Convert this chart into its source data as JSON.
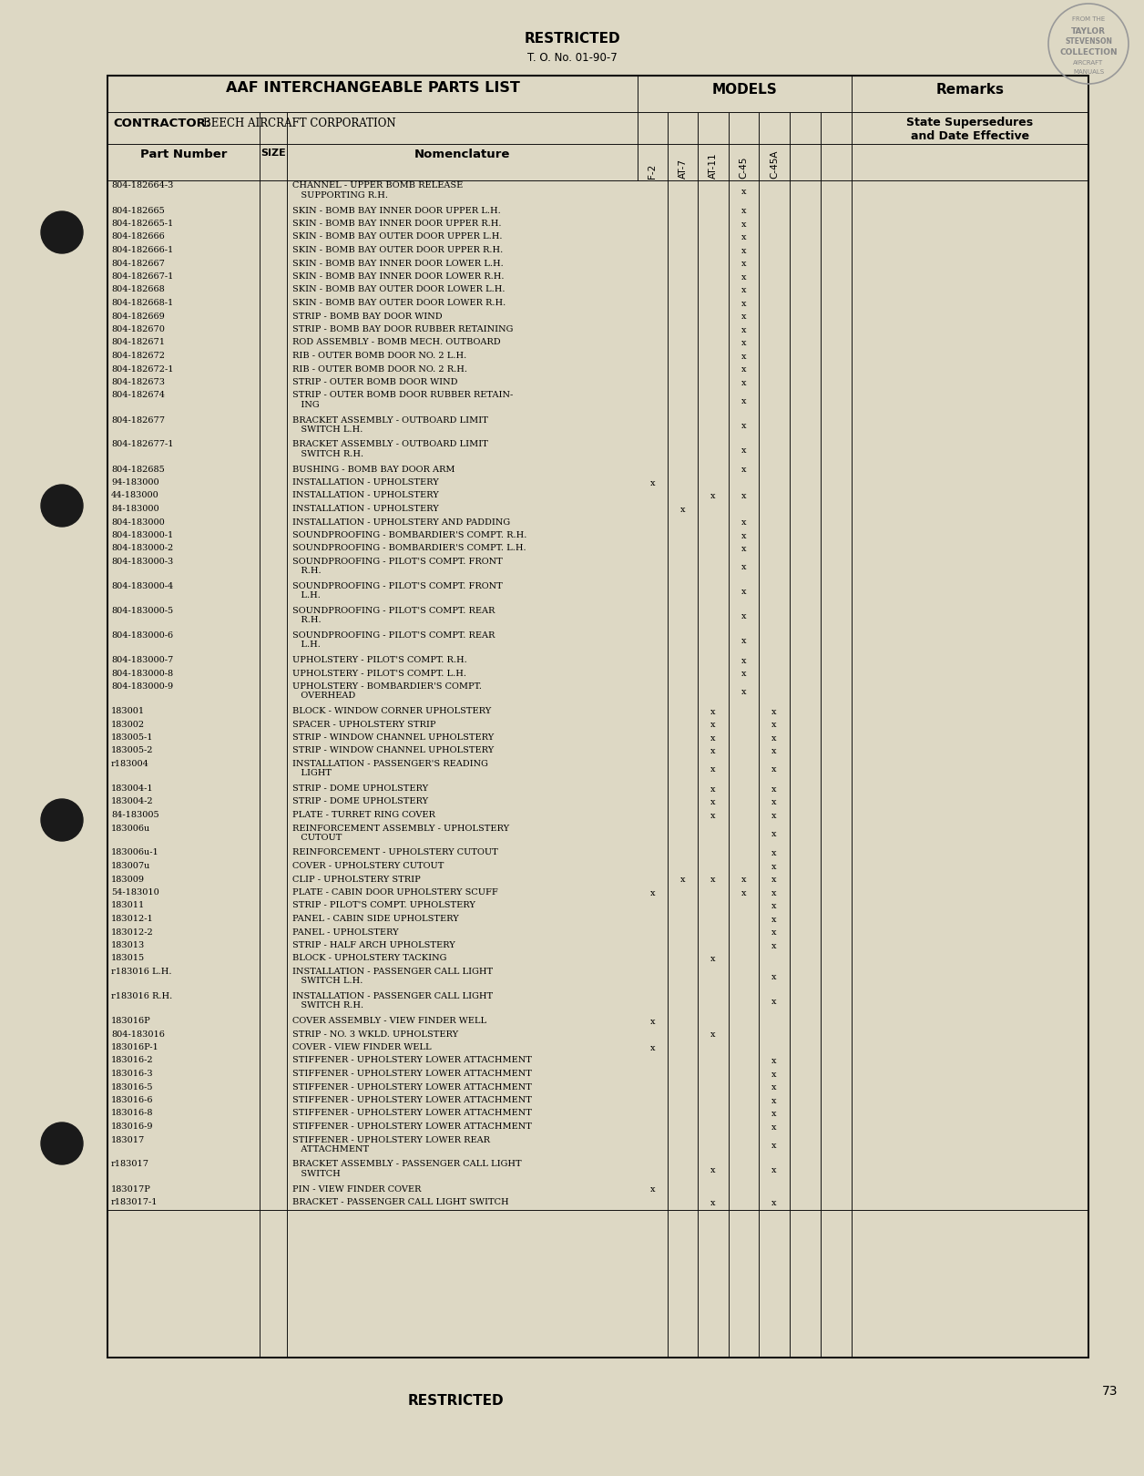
{
  "bg_color": "#ddd8c4",
  "title_restricted": "RESTRICTED",
  "to_number": "T. O. No. 01-90-7",
  "header_left": "AAF INTERCHANGEABLE PARTS LIST",
  "header_models": "MODELS",
  "header_remarks": "Remarks",
  "contractor_label": "CONTRACTOR:",
  "contractor_name": "BEECH AIRCRAFT CORPORATION",
  "remarks_sub": [
    "State Supersedures",
    "and Date Effective"
  ],
  "page_number": "73",
  "footer_restricted": "RESTRICTED",
  "model_cols": [
    "F-2",
    "AT-7",
    "AT-11",
    "C-45",
    "C-45A"
  ],
  "rows": [
    {
      "part": "804-182664-3",
      "nom": "CHANNEL - UPPER BOMB RELEASE\n   SUPPORTING R.H.",
      "marks": [
        0,
        0,
        0,
        1,
        0
      ]
    },
    {
      "part": "804-182665",
      "nom": "SKIN - BOMB BAY INNER DOOR UPPER L.H.",
      "marks": [
        0,
        0,
        0,
        1,
        0
      ]
    },
    {
      "part": "804-182665-1",
      "nom": "SKIN - BOMB BAY INNER DOOR UPPER R.H.",
      "marks": [
        0,
        0,
        0,
        1,
        0
      ]
    },
    {
      "part": "804-182666",
      "nom": "SKIN - BOMB BAY OUTER DOOR UPPER L.H.",
      "marks": [
        0,
        0,
        0,
        1,
        0
      ]
    },
    {
      "part": "804-182666-1",
      "nom": "SKIN - BOMB BAY OUTER DOOR UPPER R.H.",
      "marks": [
        0,
        0,
        0,
        1,
        0
      ]
    },
    {
      "part": "804-182667",
      "nom": "SKIN - BOMB BAY INNER DOOR LOWER L.H.",
      "marks": [
        0,
        0,
        0,
        1,
        0
      ]
    },
    {
      "part": "804-182667-1",
      "nom": "SKIN - BOMB BAY INNER DOOR LOWER R.H.",
      "marks": [
        0,
        0,
        0,
        1,
        0
      ]
    },
    {
      "part": "804-182668",
      "nom": "SKIN - BOMB BAY OUTER DOOR LOWER L.H.",
      "marks": [
        0,
        0,
        0,
        1,
        0
      ]
    },
    {
      "part": "804-182668-1",
      "nom": "SKIN - BOMB BAY OUTER DOOR LOWER R.H.",
      "marks": [
        0,
        0,
        0,
        1,
        0
      ]
    },
    {
      "part": "804-182669",
      "nom": "STRIP - BOMB BAY DOOR WIND",
      "marks": [
        0,
        0,
        0,
        1,
        0
      ]
    },
    {
      "part": "804-182670",
      "nom": "STRIP - BOMB BAY DOOR RUBBER RETAINING",
      "marks": [
        0,
        0,
        0,
        1,
        0
      ]
    },
    {
      "part": "804-182671",
      "nom": "ROD ASSEMBLY - BOMB MECH. OUTBOARD",
      "marks": [
        0,
        0,
        0,
        1,
        0
      ]
    },
    {
      "part": "804-182672",
      "nom": "RIB - OUTER BOMB DOOR NO. 2 L.H.",
      "marks": [
        0,
        0,
        0,
        1,
        0
      ]
    },
    {
      "part": "804-182672-1",
      "nom": "RIB - OUTER BOMB DOOR NO. 2 R.H.",
      "marks": [
        0,
        0,
        0,
        1,
        0
      ]
    },
    {
      "part": "804-182673",
      "nom": "STRIP - OUTER BOMB DOOR WIND",
      "marks": [
        0,
        0,
        0,
        1,
        0
      ]
    },
    {
      "part": "804-182674",
      "nom": "STRIP - OUTER BOMB DOOR RUBBER RETAIN-\n   ING",
      "marks": [
        0,
        0,
        0,
        1,
        0
      ]
    },
    {
      "part": "804-182677",
      "nom": "BRACKET ASSEMBLY - OUTBOARD LIMIT\n   SWITCH L.H.",
      "marks": [
        0,
        0,
        0,
        1,
        0
      ]
    },
    {
      "part": "804-182677-1",
      "nom": "BRACKET ASSEMBLY - OUTBOARD LIMIT\n   SWITCH R.H.",
      "marks": [
        0,
        0,
        0,
        1,
        0
      ]
    },
    {
      "part": "804-182685",
      "nom": "BUSHING - BOMB BAY DOOR ARM",
      "marks": [
        0,
        0,
        0,
        1,
        0
      ]
    },
    {
      "part": "94-183000",
      "nom": "INSTALLATION - UPHOLSTERY",
      "marks": [
        1,
        0,
        0,
        0,
        0
      ]
    },
    {
      "part": "44-183000",
      "nom": "INSTALLATION - UPHOLSTERY",
      "marks": [
        0,
        0,
        1,
        1,
        0
      ]
    },
    {
      "part": "84-183000",
      "nom": "INSTALLATION - UPHOLSTERY",
      "marks": [
        0,
        1,
        0,
        0,
        0
      ]
    },
    {
      "part": "804-183000",
      "nom": "INSTALLATION - UPHOLSTERY AND PADDING",
      "marks": [
        0,
        0,
        0,
        1,
        0
      ]
    },
    {
      "part": "804-183000-1",
      "nom": "SOUNDPROOFING - BOMBARDIER'S COMPT. R.H.",
      "marks": [
        0,
        0,
        0,
        1,
        0
      ]
    },
    {
      "part": "804-183000-2",
      "nom": "SOUNDPROOFING - BOMBARDIER'S COMPT. L.H.",
      "marks": [
        0,
        0,
        0,
        1,
        0
      ]
    },
    {
      "part": "804-183000-3",
      "nom": "SOUNDPROOFING - PILOT'S COMPT. FRONT\n   R.H.",
      "marks": [
        0,
        0,
        0,
        1,
        0
      ]
    },
    {
      "part": "804-183000-4",
      "nom": "SOUNDPROOFING - PILOT'S COMPT. FRONT\n   L.H.",
      "marks": [
        0,
        0,
        0,
        1,
        0
      ]
    },
    {
      "part": "804-183000-5",
      "nom": "SOUNDPROOFING - PILOT'S COMPT. REAR\n   R.H.",
      "marks": [
        0,
        0,
        0,
        1,
        0
      ]
    },
    {
      "part": "804-183000-6",
      "nom": "SOUNDPROOFING - PILOT'S COMPT. REAR\n   L.H.",
      "marks": [
        0,
        0,
        0,
        1,
        0
      ]
    },
    {
      "part": "804-183000-7",
      "nom": "UPHOLSTERY - PILOT'S COMPT. R.H.",
      "marks": [
        0,
        0,
        0,
        1,
        0
      ]
    },
    {
      "part": "804-183000-8",
      "nom": "UPHOLSTERY - PILOT'S COMPT. L.H.",
      "marks": [
        0,
        0,
        0,
        1,
        0
      ]
    },
    {
      "part": "804-183000-9",
      "nom": "UPHOLSTERY - BOMBARDIER'S COMPT.\n   OVERHEAD",
      "marks": [
        0,
        0,
        0,
        1,
        0
      ]
    },
    {
      "part": "183001",
      "nom": "BLOCK - WINDOW CORNER UPHOLSTERY",
      "marks": [
        0,
        0,
        1,
        0,
        1
      ]
    },
    {
      "part": "183002",
      "nom": "SPACER - UPHOLSTERY STRIP",
      "marks": [
        0,
        0,
        1,
        0,
        1
      ]
    },
    {
      "part": "183005-1",
      "nom": "STRIP - WINDOW CHANNEL UPHOLSTERY",
      "marks": [
        0,
        0,
        1,
        0,
        1
      ]
    },
    {
      "part": "183005-2",
      "nom": "STRIP - WINDOW CHANNEL UPHOLSTERY",
      "marks": [
        0,
        0,
        1,
        0,
        1
      ]
    },
    {
      "part": "r183004",
      "nom": "INSTALLATION - PASSENGER'S READING\n   LIGHT",
      "marks": [
        0,
        0,
        1,
        0,
        1
      ]
    },
    {
      "part": "183004-1",
      "nom": "STRIP - DOME UPHOLSTERY",
      "marks": [
        0,
        0,
        1,
        0,
        1
      ]
    },
    {
      "part": "183004-2",
      "nom": "STRIP - DOME UPHOLSTERY",
      "marks": [
        0,
        0,
        1,
        0,
        1
      ]
    },
    {
      "part": "84-183005",
      "nom": "PLATE - TURRET RING COVER",
      "marks": [
        0,
        0,
        1,
        0,
        1
      ]
    },
    {
      "part": "183006u",
      "nom": "REINFORCEMENT ASSEMBLY - UPHOLSTERY\n   CUTOUT",
      "marks": [
        0,
        0,
        0,
        0,
        1
      ]
    },
    {
      "part": "183006u-1",
      "nom": "REINFORCEMENT - UPHOLSTERY CUTOUT",
      "marks": [
        0,
        0,
        0,
        0,
        1
      ]
    },
    {
      "part": "183007u",
      "nom": "COVER - UPHOLSTERY CUTOUT",
      "marks": [
        0,
        0,
        0,
        0,
        1
      ]
    },
    {
      "part": "183009",
      "nom": "CLIP - UPHOLSTERY STRIP",
      "marks": [
        0,
        1,
        1,
        1,
        1
      ]
    },
    {
      "part": "54-183010",
      "nom": "PLATE - CABIN DOOR UPHOLSTERY SCUFF",
      "marks": [
        1,
        0,
        0,
        1,
        1
      ]
    },
    {
      "part": "183011",
      "nom": "STRIP - PILOT'S COMPT. UPHOLSTERY",
      "marks": [
        0,
        0,
        0,
        0,
        1
      ]
    },
    {
      "part": "183012-1",
      "nom": "PANEL - CABIN SIDE UPHOLSTERY",
      "marks": [
        0,
        0,
        0,
        0,
        1
      ]
    },
    {
      "part": "183012-2",
      "nom": "PANEL - UPHOLSTERY",
      "marks": [
        0,
        0,
        0,
        0,
        1
      ]
    },
    {
      "part": "183013",
      "nom": "STRIP - HALF ARCH UPHOLSTERY",
      "marks": [
        0,
        0,
        0,
        0,
        1
      ]
    },
    {
      "part": "183015",
      "nom": "BLOCK - UPHOLSTERY TACKING",
      "marks": [
        0,
        0,
        1,
        0,
        0
      ]
    },
    {
      "part": "r183016 L.H.",
      "nom": "INSTALLATION - PASSENGER CALL LIGHT\n   SWITCH L.H.",
      "marks": [
        0,
        0,
        0,
        0,
        1
      ]
    },
    {
      "part": "r183016 R.H.",
      "nom": "INSTALLATION - PASSENGER CALL LIGHT\n   SWITCH R.H.",
      "marks": [
        0,
        0,
        0,
        0,
        1
      ]
    },
    {
      "part": "183016P",
      "nom": "COVER ASSEMBLY - VIEW FINDER WELL",
      "marks": [
        1,
        0,
        0,
        0,
        0
      ]
    },
    {
      "part": "804-183016",
      "nom": "STRIP - NO. 3 WKLD. UPHOLSTERY",
      "marks": [
        0,
        0,
        1,
        0,
        0
      ]
    },
    {
      "part": "183016P-1",
      "nom": "COVER - VIEW FINDER WELL",
      "marks": [
        1,
        0,
        0,
        0,
        0
      ]
    },
    {
      "part": "183016-2",
      "nom": "STIFFENER - UPHOLSTERY LOWER ATTACHMENT",
      "marks": [
        0,
        0,
        0,
        0,
        1
      ]
    },
    {
      "part": "183016-3",
      "nom": "STIFFENER - UPHOLSTERY LOWER ATTACHMENT",
      "marks": [
        0,
        0,
        0,
        0,
        1
      ]
    },
    {
      "part": "183016-5",
      "nom": "STIFFENER - UPHOLSTERY LOWER ATTACHMENT",
      "marks": [
        0,
        0,
        0,
        0,
        1
      ]
    },
    {
      "part": "183016-6",
      "nom": "STIFFENER - UPHOLSTERY LOWER ATTACHMENT",
      "marks": [
        0,
        0,
        0,
        0,
        1
      ]
    },
    {
      "part": "183016-8",
      "nom": "STIFFENER - UPHOLSTERY LOWER ATTACHMENT",
      "marks": [
        0,
        0,
        0,
        0,
        1
      ]
    },
    {
      "part": "183016-9",
      "nom": "STIFFENER - UPHOLSTERY LOWER ATTACHMENT",
      "marks": [
        0,
        0,
        0,
        0,
        1
      ]
    },
    {
      "part": "183017",
      "nom": "STIFFENER - UPHOLSTERY LOWER REAR\n   ATTACHMENT",
      "marks": [
        0,
        0,
        0,
        0,
        1
      ]
    },
    {
      "part": "r183017",
      "nom": "BRACKET ASSEMBLY - PASSENGER CALL LIGHT\n   SWITCH",
      "marks": [
        0,
        0,
        1,
        0,
        1
      ]
    },
    {
      "part": "183017P",
      "nom": "PIN - VIEW FINDER COVER",
      "marks": [
        1,
        0,
        0,
        0,
        0
      ]
    },
    {
      "part": "r183017-1",
      "nom": "BRACKET - PASSENGER CALL LIGHT SWITCH",
      "marks": [
        0,
        0,
        1,
        0,
        1
      ]
    }
  ]
}
